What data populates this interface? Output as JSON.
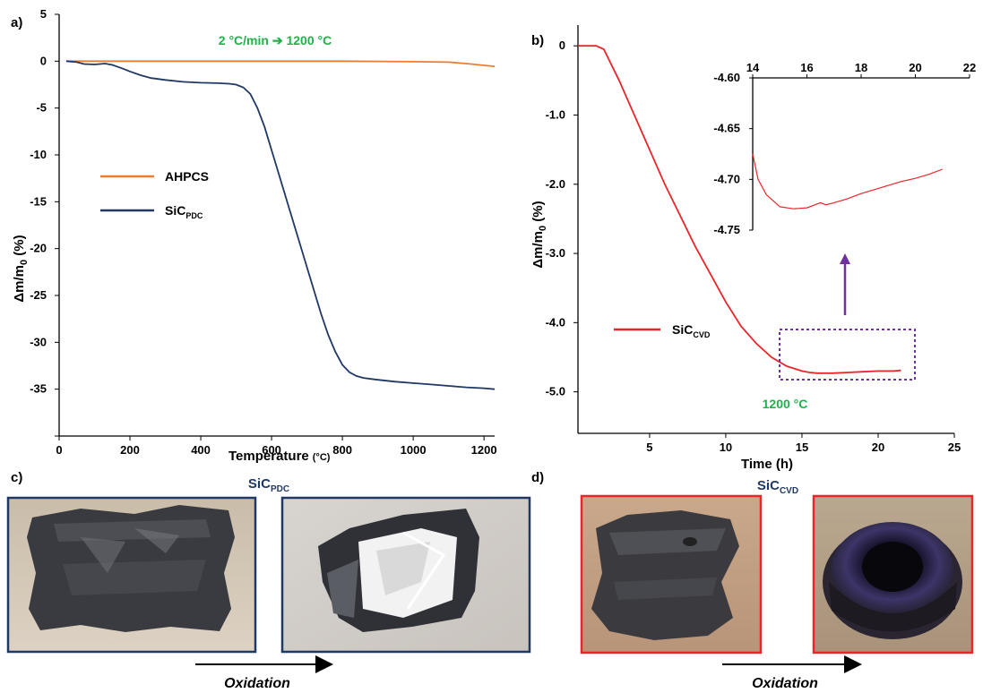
{
  "panels": {
    "a": "a)",
    "b": "b)",
    "c": "c)",
    "d": "d)"
  },
  "photos": {
    "c_title_base": "SiC",
    "c_title_sub": "PDC",
    "d_title_base": "SiC",
    "d_title_sub": "CVD",
    "arrow_label": "Oxidation",
    "c_border_color": "#1f3864",
    "d_border_color": "#e8262b"
  },
  "chart_data": [
    {
      "id": "a",
      "type": "line",
      "annotation": "2 °C/min ➔ 1200 °C",
      "annotation_color": "#22b04b",
      "xlabel": "Temperature",
      "xlabel_unit": "(°C)",
      "ylabel_parts": [
        "Δm/m",
        "0",
        " (%)"
      ],
      "xlim": [
        0,
        1230
      ],
      "ylim": [
        -40,
        5
      ],
      "xticks": [
        0,
        200,
        400,
        600,
        800,
        1000,
        1200
      ],
      "yticks": [
        5,
        0,
        -5,
        -10,
        -15,
        -20,
        -25,
        -30,
        -35
      ],
      "ytick_labels": [
        "5",
        "0",
        "-5",
        "-10",
        "-15",
        "-20",
        "-25",
        "-30",
        "-35"
      ],
      "series": [
        {
          "name": "AHPCS",
          "name_sub": "",
          "color": "#ed7d31",
          "x": [
            20,
            200,
            400,
            600,
            800,
            1000,
            1100,
            1150,
            1200,
            1230
          ],
          "y": [
            0,
            0,
            0,
            0,
            0,
            -0.05,
            -0.1,
            -0.25,
            -0.45,
            -0.55
          ]
        },
        {
          "name": "SiC",
          "name_sub": "PDC",
          "color": "#1f3864",
          "x": [
            20,
            50,
            70,
            100,
            130,
            150,
            180,
            200,
            230,
            260,
            300,
            350,
            400,
            450,
            480,
            500,
            520,
            540,
            560,
            580,
            600,
            620,
            640,
            660,
            680,
            700,
            720,
            740,
            760,
            780,
            800,
            820,
            840,
            860,
            880,
            900,
            950,
            1000,
            1050,
            1100,
            1150,
            1200,
            1230
          ],
          "y": [
            0,
            -0.1,
            -0.3,
            -0.35,
            -0.25,
            -0.4,
            -0.8,
            -1.1,
            -1.5,
            -1.8,
            -2.0,
            -2.2,
            -2.3,
            -2.35,
            -2.4,
            -2.5,
            -2.8,
            -3.5,
            -5.0,
            -7.0,
            -9.5,
            -12.0,
            -14.5,
            -17.0,
            -19.5,
            -22.0,
            -24.5,
            -27.0,
            -29.2,
            -31.0,
            -32.4,
            -33.2,
            -33.6,
            -33.8,
            -33.9,
            -34.0,
            -34.2,
            -34.35,
            -34.5,
            -34.65,
            -34.8,
            -34.9,
            -35.0
          ]
        }
      ]
    },
    {
      "id": "b",
      "type": "line",
      "annotation": "1200 °C",
      "annotation_color": "#22b04b",
      "xlabel": "Time (h)",
      "ylabel_parts": [
        "Δm/m",
        "0",
        " (%)"
      ],
      "xlim": [
        0.3,
        25
      ],
      "ylim": [
        -5.6,
        0.3
      ],
      "xticks": [
        5,
        10,
        15,
        20,
        25
      ],
      "yticks": [
        0,
        -1,
        -2,
        -3,
        -4,
        -5
      ],
      "ytick_labels": [
        "0",
        "-1.0",
        "-2.0",
        "-3.0",
        "-4.0",
        "-5.0"
      ],
      "series": [
        {
          "name": "SiC",
          "name_sub": "CVD",
          "color": "#e8262b",
          "x": [
            0.3,
            1.0,
            1.5,
            2.0,
            3.0,
            4.0,
            5.0,
            6.0,
            7.0,
            8.0,
            9.0,
            10.0,
            11.0,
            12.0,
            13.0,
            14.0,
            15.0,
            15.5,
            16.0,
            17.0,
            18.0,
            19.0,
            20.0,
            21.0,
            21.5
          ],
          "y": [
            0,
            0,
            0,
            -0.05,
            -0.5,
            -1.0,
            -1.5,
            -2.0,
            -2.45,
            -2.9,
            -3.3,
            -3.7,
            -4.05,
            -4.3,
            -4.5,
            -4.63,
            -4.7,
            -4.72,
            -4.73,
            -4.73,
            -4.72,
            -4.71,
            -4.7,
            -4.7,
            -4.69
          ]
        }
      ],
      "inset": {
        "xlim": [
          14,
          22
        ],
        "ylim": [
          -4.75,
          -4.6
        ],
        "xticks": [
          14,
          16,
          18,
          20,
          22
        ],
        "yticks": [
          -4.6,
          -4.65,
          -4.7,
          -4.75
        ],
        "ytick_labels": [
          "-4.60",
          "-4.65",
          "-4.70",
          "-4.75"
        ],
        "color": "#e8262b",
        "x": [
          14.0,
          14.2,
          14.5,
          15.0,
          15.5,
          16.0,
          16.3,
          16.5,
          16.7,
          17.0,
          17.5,
          18.0,
          18.5,
          19.0,
          19.5,
          20.0,
          20.5,
          21.0
        ],
        "y": [
          -4.675,
          -4.7,
          -4.715,
          -4.727,
          -4.729,
          -4.728,
          -4.725,
          -4.723,
          -4.725,
          -4.723,
          -4.719,
          -4.714,
          -4.71,
          -4.706,
          -4.702,
          -4.699,
          -4.695,
          -4.69
        ]
      },
      "highlight_color": "#7030a0",
      "arrow_color": "#7030a0"
    }
  ]
}
